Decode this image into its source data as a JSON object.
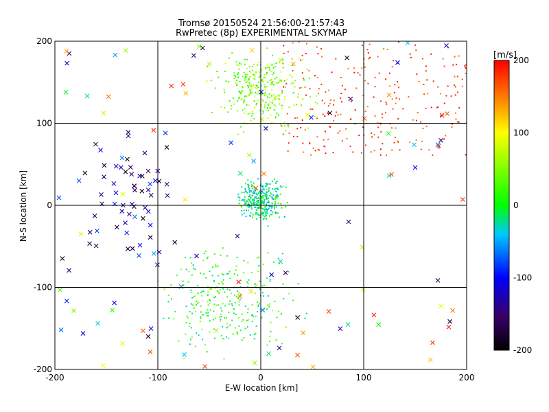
{
  "chart_data": {
    "type": "scatter",
    "title": "Tromsø 20150524 21:56:00-21:57:43",
    "subtitle": "RwPretec (8p) EXPERIMENTAL SKYMAP",
    "xlabel": "E-W location [km]",
    "ylabel": "N-S location [km]",
    "xlim": [
      -200,
      200
    ],
    "ylim": [
      -200,
      200
    ],
    "x_ticks": [
      -200,
      -100,
      0,
      100,
      200
    ],
    "y_ticks": [
      -200,
      -100,
      0,
      100,
      200
    ],
    "grid": true,
    "colorbar": {
      "label": "[m/s]",
      "range": [
        -200,
        200
      ],
      "ticks": [
        200,
        100,
        0,
        -100,
        -200
      ]
    },
    "markers": [
      "dot",
      "x"
    ],
    "clusters": [
      {
        "region": "northeast",
        "x_range": [
          20,
          200
        ],
        "y_range": [
          60,
          200
        ],
        "velocity_range": [
          150,
          200
        ],
        "marker": "dot",
        "count": 260
      },
      {
        "region": "north-center",
        "x_range": [
          -60,
          60
        ],
        "y_range": [
          80,
          200
        ],
        "velocity_range": [
          0,
          90
        ],
        "marker": "dot",
        "count": 320
      },
      {
        "region": "center",
        "x_range": [
          -30,
          30
        ],
        "y_range": [
          -30,
          40
        ],
        "velocity_range": [
          -60,
          30
        ],
        "marker": "dot",
        "count": 340
      },
      {
        "region": "south-center",
        "x_range": [
          -120,
          60
        ],
        "y_range": [
          -200,
          -30
        ],
        "velocity_range": [
          -40,
          60
        ],
        "marker": "dot",
        "count": 300
      },
      {
        "region": "west",
        "x_range": [
          -190,
          -60
        ],
        "y_range": [
          -110,
          110
        ],
        "velocity_range": [
          -200,
          -60
        ],
        "marker": "x",
        "count": 60
      },
      {
        "region": "scattered",
        "x_range": [
          -200,
          200
        ],
        "y_range": [
          -200,
          200
        ],
        "velocity_range": [
          -200,
          200
        ],
        "marker": "x",
        "count": 110
      }
    ]
  }
}
